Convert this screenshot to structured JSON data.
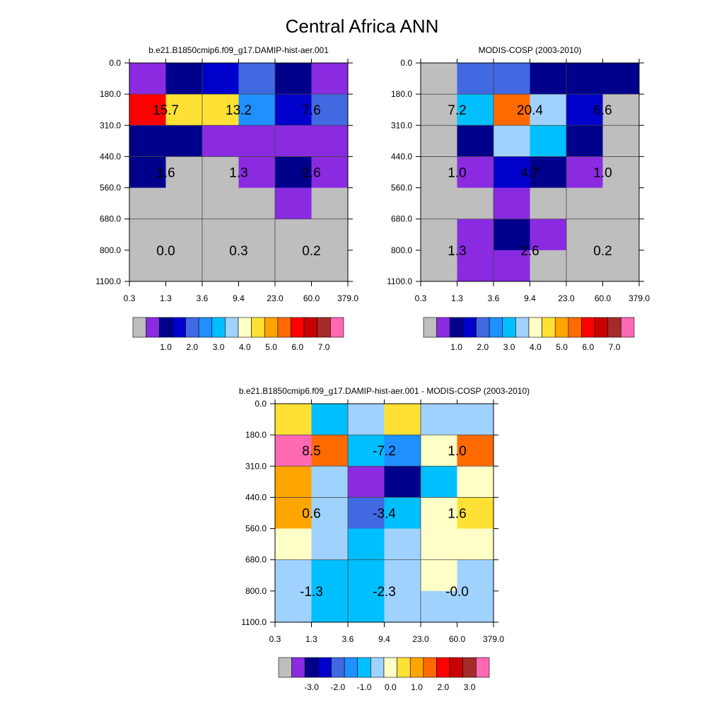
{
  "title": "Central Africa ANN",
  "palette": [
    "#bebebe",
    "#8a2be2",
    "#00008b",
    "#0000cd",
    "#4169e1",
    "#1e90ff",
    "#00bfff",
    "#a0d2ff",
    "#ffffc8",
    "#ffe135",
    "#ffa500",
    "#ff6a00",
    "#ff0000",
    "#c80000",
    "#a52a2a",
    "#ff69b4"
  ],
  "chart_data": [
    {
      "type": "heatmap",
      "title": "b.e21.B1850cmip6.f09_g17.DAMIP-hist-aer.001",
      "x_ticks": [
        "0.3",
        "1.3",
        "3.6",
        "9.4",
        "23.0",
        "60.0",
        "379.0"
      ],
      "y_ticks": [
        "0.0",
        "180.0",
        "310.0",
        "440.0",
        "560.0",
        "680.0",
        "800.0",
        "1100.0"
      ],
      "cell_colors": [
        [
          1,
          2,
          3,
          4,
          2,
          1
        ],
        [
          12,
          9,
          9,
          5,
          3,
          4
        ],
        [
          2,
          2,
          1,
          1,
          1,
          1
        ],
        [
          2,
          0,
          0,
          1,
          2,
          1
        ],
        [
          0,
          0,
          0,
          0,
          1,
          0
        ],
        [
          0,
          0,
          0,
          0,
          0,
          0
        ],
        [
          0,
          0,
          0,
          0,
          0,
          0
        ]
      ],
      "cell_labels": [
        {
          "text": "15.7",
          "col": 0,
          "row": 1
        },
        {
          "text": "13.2",
          "col": 1,
          "row": 1
        },
        {
          "text": "7.6",
          "col": 2,
          "row": 1
        },
        {
          "text": "1.6",
          "col": 0,
          "row": 3
        },
        {
          "text": "1.3",
          "col": 1,
          "row": 3
        },
        {
          "text": "2.6",
          "col": 2,
          "row": 3
        },
        {
          "text": "0.0",
          "col": 0,
          "row": 5
        },
        {
          "text": "0.3",
          "col": 1,
          "row": 5
        },
        {
          "text": "0.2",
          "col": 2,
          "row": 5
        }
      ],
      "colorbar_labels": [
        "1.0",
        "2.0",
        "3.0",
        "4.0",
        "5.0",
        "6.0",
        "7.0"
      ]
    },
    {
      "type": "heatmap",
      "title": "MODIS-COSP (2003-2010)",
      "x_ticks": [
        "0.3",
        "1.3",
        "3.6",
        "9.4",
        "23.0",
        "60.0",
        "379.0"
      ],
      "y_ticks": [
        "0.0",
        "180.0",
        "310.0",
        "440.0",
        "560.0",
        "680.0",
        "800.0",
        "1100.0"
      ],
      "cell_colors": [
        [
          0,
          4,
          4,
          2,
          2,
          2
        ],
        [
          0,
          6,
          11,
          7,
          3,
          0
        ],
        [
          0,
          2,
          7,
          6,
          2,
          0
        ],
        [
          0,
          1,
          3,
          2,
          1,
          0
        ],
        [
          0,
          0,
          1,
          0,
          0,
          0
        ],
        [
          0,
          1,
          2,
          1,
          0,
          0
        ],
        [
          0,
          1,
          1,
          0,
          0,
          0
        ]
      ],
      "cell_labels": [
        {
          "text": "7.2",
          "col": 0,
          "row": 1
        },
        {
          "text": "20.4",
          "col": 1,
          "row": 1
        },
        {
          "text": "6.6",
          "col": 2,
          "row": 1
        },
        {
          "text": "1.0",
          "col": 0,
          "row": 3
        },
        {
          "text": "4.7",
          "col": 1,
          "row": 3
        },
        {
          "text": "1.0",
          "col": 2,
          "row": 3
        },
        {
          "text": "1.3",
          "col": 0,
          "row": 5
        },
        {
          "text": "2.6",
          "col": 1,
          "row": 5
        },
        {
          "text": "0.2",
          "col": 2,
          "row": 5
        }
      ],
      "colorbar_labels": [
        "1.0",
        "2.0",
        "3.0",
        "4.0",
        "5.0",
        "6.0",
        "7.0"
      ]
    },
    {
      "type": "heatmap",
      "title": "b.e21.B1850cmip6.f09_g17.DAMIP-hist-aer.001 - MODIS-COSP (2003-2010)",
      "x_ticks": [
        "0.3",
        "1.3",
        "3.6",
        "9.4",
        "23.0",
        "60.0",
        "379.0"
      ],
      "y_ticks": [
        "0.0",
        "180.0",
        "310.0",
        "440.0",
        "560.0",
        "680.0",
        "800.0",
        "1100.0"
      ],
      "cell_colors": [
        [
          9,
          6,
          7,
          9,
          7,
          7
        ],
        [
          15,
          11,
          6,
          5,
          8,
          11
        ],
        [
          10,
          7,
          1,
          2,
          6,
          8
        ],
        [
          10,
          7,
          4,
          6,
          8,
          9
        ],
        [
          8,
          7,
          6,
          7,
          8,
          8
        ],
        [
          7,
          6,
          6,
          7,
          8,
          7
        ],
        [
          7,
          6,
          6,
          7,
          7,
          7
        ]
      ],
      "cell_labels": [
        {
          "text": "8.5",
          "col": 0,
          "row": 1
        },
        {
          "text": "-7.2",
          "col": 1,
          "row": 1
        },
        {
          "text": "1.0",
          "col": 2,
          "row": 1
        },
        {
          "text": "0.6",
          "col": 0,
          "row": 3
        },
        {
          "text": "-3.4",
          "col": 1,
          "row": 3
        },
        {
          "text": "1.6",
          "col": 2,
          "row": 3
        },
        {
          "text": "-1.3",
          "col": 0,
          "row": 5
        },
        {
          "text": "-2.3",
          "col": 1,
          "row": 5
        },
        {
          "text": "-0.0",
          "col": 2,
          "row": 5
        }
      ],
      "colorbar_labels": [
        "-3.0",
        "-2.0",
        "-1.0",
        "0.0",
        "1.0",
        "2.0",
        "3.0"
      ]
    }
  ]
}
